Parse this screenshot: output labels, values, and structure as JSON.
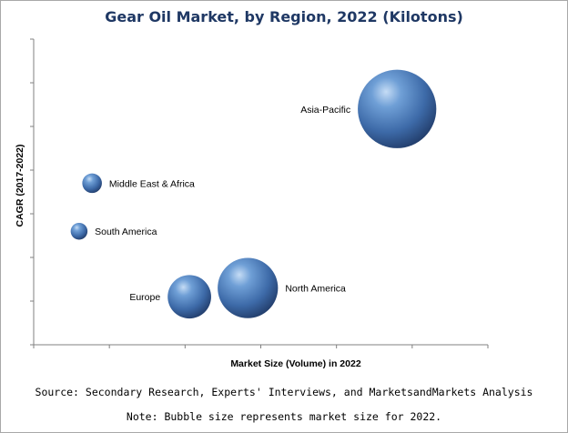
{
  "chart_data": {
    "type": "bubble",
    "title": "Gear Oil Market, by Region, 2022 (Kilotons)",
    "xlabel": "Market Size (Volume) in 2022",
    "ylabel": "CAGR (2017-2022)",
    "source": "Source: Secondary Research, Experts' Interviews, and MarketsandMarkets Analysis",
    "note": "Note: Bubble size represents market size for 2022.",
    "xlim": [
      0,
      7
    ],
    "ylim": [
      0,
      7
    ],
    "grid": false,
    "legend": "none",
    "colors": {
      "bubble": "#4f81bd",
      "bubble_dark": "#1f3864",
      "title": "#1f3864",
      "axis": "#808080"
    },
    "points": [
      {
        "label": "Asia-Pacific",
        "x": 5.6,
        "y": 5.4,
        "size": 5.6
      },
      {
        "label": "Middle East & Africa",
        "x": 0.9,
        "y": 3.7,
        "size": 1.4
      },
      {
        "label": "South America",
        "x": 0.7,
        "y": 2.6,
        "size": 1.2
      },
      {
        "label": "Europe",
        "x": 2.4,
        "y": 1.1,
        "size": 3.1
      },
      {
        "label": "North America",
        "x": 3.3,
        "y": 1.3,
        "size": 4.3
      }
    ]
  }
}
